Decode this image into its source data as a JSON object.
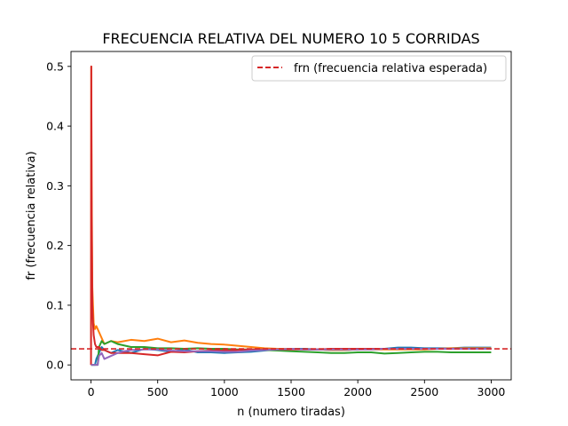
{
  "chart_data": {
    "type": "line",
    "title": "FRECUENCIA RELATIVA DEL NUMERO 10 5 CORRIDAS",
    "xlabel": "n (numero tiradas)",
    "ylabel": "fr (frecuencia relativa)",
    "xlim": [
      -150,
      3150
    ],
    "ylim": [
      -0.025,
      0.525
    ],
    "xticks": [
      0,
      500,
      1000,
      1500,
      2000,
      2500,
      3000
    ],
    "yticks": [
      0.0,
      0.1,
      0.2,
      0.3,
      0.4,
      0.5
    ],
    "ytick_labels": [
      "0.0",
      "0.1",
      "0.2",
      "0.3",
      "0.4",
      "0.5"
    ],
    "grid": false,
    "legend_position": "top-right",
    "expected": {
      "name": "frn (frecuencia relativa esperada)",
      "value": 0.027,
      "color": "#d62728",
      "style": "dashed"
    },
    "series": [
      {
        "color": "#1f77b4",
        "x": [
          0,
          10,
          20,
          30,
          40,
          60,
          80,
          100,
          150,
          200,
          300,
          400,
          500,
          600,
          700,
          800,
          900,
          1000,
          1100,
          1200,
          1300,
          1400,
          1500,
          1600,
          1700,
          1800,
          1900,
          2000,
          2100,
          2200,
          2300,
          2400,
          2500,
          2600,
          2700,
          2800,
          2900,
          3000
        ],
        "y": [
          0.0,
          0.0,
          0.0,
          0.0,
          0.01,
          0.02,
          0.03,
          0.025,
          0.02,
          0.025,
          0.02,
          0.027,
          0.025,
          0.022,
          0.026,
          0.021,
          0.021,
          0.02,
          0.021,
          0.022,
          0.024,
          0.026,
          0.027,
          0.027,
          0.026,
          0.025,
          0.025,
          0.026,
          0.027,
          0.027,
          0.029,
          0.029,
          0.028,
          0.028,
          0.028,
          0.029,
          0.029,
          0.029
        ]
      },
      {
        "color": "#ff7f0e",
        "x": [
          0,
          2,
          5,
          10,
          20,
          30,
          40,
          60,
          80,
          100,
          150,
          200,
          300,
          400,
          500,
          600,
          700,
          800,
          900,
          1000,
          1100,
          1200,
          1300,
          1400,
          1500,
          1600,
          1700,
          1800,
          1900,
          2000,
          2100,
          2200,
          2300,
          2400,
          2500,
          2600,
          2700,
          2800,
          2900,
          3000
        ],
        "y": [
          0.0,
          0.5,
          0.3,
          0.13,
          0.07,
          0.06,
          0.065,
          0.055,
          0.045,
          0.035,
          0.04,
          0.038,
          0.042,
          0.04,
          0.044,
          0.038,
          0.041,
          0.037,
          0.035,
          0.034,
          0.032,
          0.03,
          0.028,
          0.027,
          0.027,
          0.026,
          0.026,
          0.025,
          0.025,
          0.026,
          0.026,
          0.026,
          0.026,
          0.026,
          0.026,
          0.027,
          0.028,
          0.028,
          0.028,
          0.028
        ]
      },
      {
        "color": "#2ca02c",
        "x": [
          0,
          10,
          20,
          30,
          40,
          50,
          60,
          80,
          100,
          150,
          200,
          300,
          400,
          500,
          600,
          700,
          800,
          900,
          1000,
          1100,
          1200,
          1300,
          1400,
          1500,
          1600,
          1700,
          1800,
          1900,
          2000,
          2100,
          2200,
          2300,
          2400,
          2500,
          2600,
          2700,
          2800,
          2900,
          3000
        ],
        "y": [
          0.0,
          0.0,
          0.0,
          0.0,
          0.0,
          0.0,
          0.03,
          0.04,
          0.035,
          0.04,
          0.035,
          0.03,
          0.03,
          0.028,
          0.028,
          0.027,
          0.028,
          0.027,
          0.027,
          0.026,
          0.026,
          0.025,
          0.024,
          0.023,
          0.022,
          0.021,
          0.02,
          0.02,
          0.021,
          0.021,
          0.019,
          0.02,
          0.021,
          0.022,
          0.022,
          0.021,
          0.021,
          0.021,
          0.021
        ]
      },
      {
        "color": "#d62728",
        "x": [
          0,
          2,
          5,
          10,
          15,
          20,
          30,
          40,
          60,
          80,
          100,
          150,
          200,
          300,
          400,
          500,
          600,
          700,
          800,
          900,
          1000,
          1100,
          1200,
          1300,
          1400,
          1500,
          1600,
          1700,
          1800,
          1900,
          2000,
          2100,
          2200,
          2300,
          2400,
          2500,
          2600,
          2700,
          2800,
          2900,
          3000
        ],
        "y": [
          0.0,
          0.5,
          0.25,
          0.1,
          0.07,
          0.05,
          0.035,
          0.03,
          0.03,
          0.025,
          0.025,
          0.02,
          0.02,
          0.02,
          0.018,
          0.016,
          0.022,
          0.021,
          0.023,
          0.024,
          0.024,
          0.025,
          0.026,
          0.026,
          0.026,
          0.026,
          0.026,
          0.026,
          0.027,
          0.027,
          0.027,
          0.027,
          0.027,
          0.027,
          0.027,
          0.027,
          0.027,
          0.027,
          0.027,
          0.027,
          0.027
        ]
      },
      {
        "color": "#9467bd",
        "x": [
          0,
          10,
          20,
          30,
          40,
          50,
          60,
          80,
          100,
          150,
          200,
          250,
          300,
          400,
          500,
          600,
          700,
          800,
          900,
          1000,
          1100,
          1200,
          1300,
          1400,
          1500,
          1600,
          1700,
          1800,
          1900,
          2000,
          2100,
          2200,
          2300,
          2400,
          2500,
          2600,
          2700,
          2800,
          2900,
          3000
        ],
        "y": [
          0.0,
          0.0,
          0.0,
          0.0,
          0.0,
          0.0,
          0.015,
          0.02,
          0.01,
          0.015,
          0.02,
          0.023,
          0.025,
          0.026,
          0.026,
          0.024,
          0.023,
          0.023,
          0.023,
          0.022,
          0.022,
          0.024,
          0.025,
          0.026,
          0.027,
          0.026,
          0.026,
          0.026,
          0.026,
          0.026,
          0.026,
          0.027,
          0.027,
          0.027,
          0.027,
          0.027,
          0.027,
          0.027,
          0.027,
          0.027
        ]
      }
    ]
  }
}
